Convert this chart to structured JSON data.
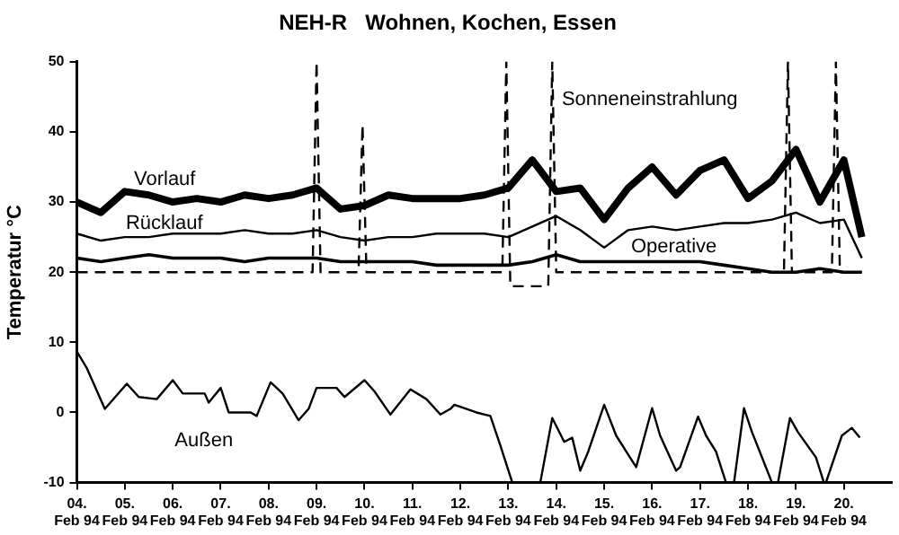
{
  "chart_data": {
    "type": "line",
    "title": "NEH-R   Wohnen, Kochen, Essen",
    "ylabel": "Temperatur °C",
    "legend": false,
    "grid": false,
    "xlim": [
      "1994-02-04",
      "1994-02-21"
    ],
    "xticks": [
      {
        "value": "1994-02-04",
        "label": "04. Feb 94"
      },
      {
        "value": "1994-02-05",
        "label": "05. Feb 94"
      },
      {
        "value": "1994-02-06",
        "label": "06. Feb 94"
      },
      {
        "value": "1994-02-07",
        "label": "07. Feb 94"
      },
      {
        "value": "1994-02-08",
        "label": "08. Feb 94"
      },
      {
        "value": "1994-02-09",
        "label": "09. Feb 94"
      },
      {
        "value": "1994-02-10",
        "label": "10. Feb 94"
      },
      {
        "value": "1994-02-11",
        "label": "11. Feb 94"
      },
      {
        "value": "1994-02-12",
        "label": "12. Feb 94"
      },
      {
        "value": "1994-02-13",
        "label": "13. Feb 94"
      },
      {
        "value": "1994-02-14",
        "label": "14. Feb 94"
      },
      {
        "value": "1994-02-15",
        "label": "15. Feb 94"
      },
      {
        "value": "1994-02-16",
        "label": "16. Feb 94"
      },
      {
        "value": "1994-02-17",
        "label": "17. Feb 94"
      },
      {
        "value": "1994-02-18",
        "label": "18. Feb 94"
      },
      {
        "value": "1994-02-19",
        "label": "19. Feb 94"
      },
      {
        "value": "1994-02-20",
        "label": "20. Feb 94"
      }
    ],
    "ylim": [
      -10,
      50
    ],
    "yticks": [
      -10,
      0,
      10,
      20,
      30,
      40,
      50
    ],
    "x": [
      "1994-02-04T00:00",
      "1994-02-04T12:00",
      "1994-02-05T00:00",
      "1994-02-05T12:00",
      "1994-02-06T00:00",
      "1994-02-06T12:00",
      "1994-02-07T00:00",
      "1994-02-07T12:00",
      "1994-02-08T00:00",
      "1994-02-08T12:00",
      "1994-02-09T00:00",
      "1994-02-09T12:00",
      "1994-02-10T00:00",
      "1994-02-10T12:00",
      "1994-02-11T00:00",
      "1994-02-11T12:00",
      "1994-02-12T00:00",
      "1994-02-12T12:00",
      "1994-02-13T00:00",
      "1994-02-13T12:00",
      "1994-02-14T00:00",
      "1994-02-14T12:00",
      "1994-02-15T00:00",
      "1994-02-15T12:00",
      "1994-02-16T00:00",
      "1994-02-16T12:00",
      "1994-02-17T00:00",
      "1994-02-17T12:00",
      "1994-02-18T00:00",
      "1994-02-18T12:00",
      "1994-02-19T00:00",
      "1994-02-19T12:00",
      "1994-02-20T00:00",
      "1994-02-20T09:00"
    ],
    "series": [
      {
        "name": "Vorlauf",
        "color": "#000000",
        "line_style": "solid",
        "values": [
          30,
          28.5,
          31.5,
          31,
          30,
          30.5,
          30,
          31,
          30.5,
          31,
          32,
          29,
          29.5,
          31,
          30.5,
          30.5,
          30.5,
          31,
          32,
          36,
          31.5,
          32,
          27.5,
          32,
          35,
          31,
          34.5,
          36,
          30.5,
          33,
          37.5,
          30,
          36,
          25
        ]
      },
      {
        "name": "Rücklauf",
        "color": "#000000",
        "line_style": "solid",
        "values": [
          25.5,
          24.5,
          25,
          25,
          25.5,
          25.5,
          25.5,
          26,
          25.5,
          25.5,
          26,
          25,
          24.5,
          25,
          25,
          25.5,
          25.5,
          25.5,
          25,
          26.5,
          28,
          26,
          23.5,
          26,
          26.5,
          26,
          26.5,
          27,
          27,
          27.5,
          28.5,
          27,
          27.5,
          22
        ]
      },
      {
        "name": "Operative",
        "color": "#000000",
        "line_style": "solid",
        "values": [
          22,
          21.5,
          22,
          22.5,
          22,
          22,
          22,
          21.5,
          22,
          22,
          22,
          21.5,
          21.5,
          21.5,
          21.5,
          21,
          21,
          21,
          21,
          21.5,
          22.5,
          21.5,
          21.5,
          21.5,
          21.5,
          21.5,
          21.5,
          21,
          20.5,
          20,
          20,
          20.5,
          20,
          20
        ]
      },
      {
        "name": "Außen",
        "color": "#000000",
        "line_style": "solid",
        "x": [
          "1994-02-04T00:00",
          "1994-02-04T05:00",
          "1994-02-04T14:00",
          "1994-02-05T01:00",
          "1994-02-05T07:00",
          "1994-02-05T16:00",
          "1994-02-06T00:00",
          "1994-02-06T05:00",
          "1994-02-06T16:00",
          "1994-02-06T18:00",
          "1994-02-07T00:00",
          "1994-02-07T04:00",
          "1994-02-07T15:00",
          "1994-02-07T18:00",
          "1994-02-08T01:00",
          "1994-02-08T07:00",
          "1994-02-08T15:00",
          "1994-02-08T20:00",
          "1994-02-09T00:00",
          "1994-02-09T10:00",
          "1994-02-09T14:00",
          "1994-02-10T00:00",
          "1994-02-10T05:00",
          "1994-02-10T13:00",
          "1994-02-10T23:00",
          "1994-02-11T07:00",
          "1994-02-11T14:00",
          "1994-02-11T19:00",
          "1994-02-11T21:00",
          "1994-02-12T08:00",
          "1994-02-12T15:00",
          "1994-02-12T20:00",
          "1994-02-13T02:00",
          "1994-02-13T16:00",
          "1994-02-13T22:00",
          "1994-02-14T04:00",
          "1994-02-14T08:00",
          "1994-02-14T12:00",
          "1994-02-14T16:00",
          "1994-02-15T00:00",
          "1994-02-15T06:00",
          "1994-02-15T16:00",
          "1994-02-16T00:00",
          "1994-02-16T04:00",
          "1994-02-16T12:00",
          "1994-02-16T14:00",
          "1994-02-16T23:00",
          "1994-02-17T03:00",
          "1994-02-17T08:00",
          "1994-02-17T13:00",
          "1994-02-17T17:00",
          "1994-02-17T22:00",
          "1994-02-18T02:00",
          "1994-02-18T12:00",
          "1994-02-18T15:00",
          "1994-02-18T21:00",
          "1994-02-19T01:00",
          "1994-02-19T10:00",
          "1994-02-19T14:00",
          "1994-02-19T15:00",
          "1994-02-19T23:00",
          "1994-02-20T04:00",
          "1994-02-20T08:00"
        ],
        "values": [
          8.7,
          6.3,
          0.5,
          4.1,
          2.2,
          1.9,
          4.6,
          2.7,
          2.7,
          1.4,
          3.5,
          0,
          0,
          -0.5,
          4.3,
          2.7,
          -1.1,
          0.5,
          3.5,
          3.5,
          2.2,
          4.6,
          3,
          -0.3,
          3.3,
          1.9,
          -0.3,
          0.5,
          1.1,
          0,
          -0.5,
          -4.7,
          -10,
          -10,
          -0.8,
          -4.2,
          -3.6,
          -8.3,
          -5.6,
          1.1,
          -3.3,
          -7.8,
          0.6,
          -3.3,
          -8.3,
          -7.8,
          -0.6,
          -3.3,
          -5.6,
          -10,
          -10,
          0.6,
          -2.8,
          -10,
          -10,
          -0.8,
          -2.8,
          -6.4,
          -10,
          -10,
          -3.3,
          -2.2,
          -3.6
        ]
      },
      {
        "name": "Sonneneinstrahlung",
        "color": "#000000",
        "line_style": "dashed",
        "x": [
          "1994-02-04T00:00",
          "1994-02-08T22:00",
          "1994-02-09T00:00",
          "1994-02-09T02:00",
          "1994-02-09T21:00",
          "1994-02-09T23:00",
          "1994-02-10T01:00",
          "1994-02-12T21:00",
          "1994-02-12T23:00",
          "1994-02-13T01:00",
          "1994-02-13T20:00",
          "1994-02-13T22:00",
          "1994-02-14T00:00",
          "1994-02-18T18:00",
          "1994-02-18T20:00",
          "1994-02-18T22:00",
          "1994-02-19T18:00",
          "1994-02-19T20:00",
          "1994-02-19T22:00",
          "1994-02-20T09:00"
        ],
        "values": [
          20,
          20,
          50,
          20,
          20,
          41,
          20,
          20,
          50,
          18,
          18,
          50,
          20,
          20,
          50,
          20,
          20,
          50,
          20,
          20
        ]
      }
    ]
  }
}
